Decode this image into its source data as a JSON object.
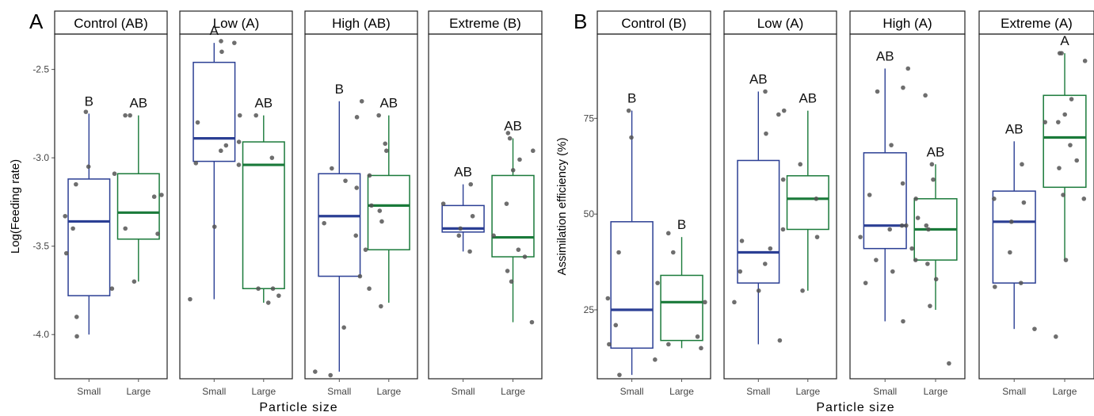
{
  "chart_data": [
    {
      "type": "boxplot",
      "panel_label": "A",
      "ylabel": "Log(Feeding rate)",
      "xlabel": "Particle size",
      "ylim": [
        -4.25,
        -2.3
      ],
      "yticks": [
        -4.0,
        -3.5,
        -3.0,
        -2.5
      ],
      "ytick_labels": [
        "-4.0",
        "-3.5",
        "-3.0",
        "-2.5"
      ],
      "categories": [
        "Small",
        "Large"
      ],
      "colors": {
        "Small": "#2b3f94",
        "Large": "#1a7a3a"
      },
      "facets": [
        {
          "title": "Control (AB)",
          "boxes": [
            {
              "group": "Small",
              "min": -4.0,
              "q1": -3.78,
              "median": -3.36,
              "q3": -3.12,
              "max": -2.75,
              "sig": "B",
              "points": [
                -2.74,
                -3.05,
                -3.15,
                -3.33,
                -3.4,
                -3.54,
                -3.74,
                -3.9,
                -4.01
              ]
            },
            {
              "group": "Large",
              "min": -3.7,
              "q1": -3.46,
              "median": -3.31,
              "q3": -3.09,
              "max": -2.76,
              "sig": "AB",
              "points": [
                -2.76,
                -2.76,
                -3.09,
                -3.21,
                -3.22,
                -3.4,
                -3.43,
                -3.7
              ]
            }
          ]
        },
        {
          "title": "Low (A)",
          "boxes": [
            {
              "group": "Small",
              "min": -3.8,
              "q1": -3.02,
              "median": -2.89,
              "q3": -2.46,
              "max": -2.35,
              "sig": "A",
              "points": [
                -2.34,
                -2.35,
                -2.4,
                -2.8,
                -2.93,
                -2.96,
                -3.03,
                -3.39,
                -3.8
              ]
            },
            {
              "group": "Large",
              "min": -3.82,
              "q1": -3.74,
              "median": -3.04,
              "q3": -2.91,
              "max": -2.76,
              "sig": "AB",
              "points": [
                -2.76,
                -2.76,
                -2.91,
                -3.0,
                -3.04,
                -3.74,
                -3.74,
                -3.78,
                -3.82
              ]
            }
          ]
        },
        {
          "title": "High (AB)",
          "boxes": [
            {
              "group": "Small",
              "min": -4.21,
              "q1": -3.67,
              "median": -3.33,
              "q3": -3.09,
              "max": -2.68,
              "sig": "B",
              "points": [
                -2.68,
                -2.77,
                -3.06,
                -3.13,
                -3.17,
                -3.37,
                -3.44,
                -3.67,
                -3.96,
                -4.21,
                -4.23
              ]
            },
            {
              "group": "Large",
              "min": -3.82,
              "q1": -3.52,
              "median": -3.27,
              "q3": -3.1,
              "max": -2.76,
              "sig": "AB",
              "points": [
                -2.76,
                -2.92,
                -2.96,
                -3.1,
                -3.27,
                -3.3,
                -3.36,
                -3.52,
                -3.74,
                -3.84
              ]
            }
          ]
        },
        {
          "title": "Extreme (B)",
          "boxes": [
            {
              "group": "Small",
              "min": -3.53,
              "q1": -3.42,
              "median": -3.4,
              "q3": -3.27,
              "max": -3.15,
              "sig": "AB",
              "points": [
                -3.15,
                -3.26,
                -3.33,
                -3.4,
                -3.44,
                -3.53
              ]
            },
            {
              "group": "Large",
              "min": -3.93,
              "q1": -3.56,
              "median": -3.45,
              "q3": -3.1,
              "max": -2.89,
              "sig": "AB",
              "points": [
                -2.86,
                -2.89,
                -2.96,
                -3.01,
                -3.07,
                -3.26,
                -3.44,
                -3.52,
                -3.56,
                -3.64,
                -3.7,
                -3.93
              ]
            }
          ]
        }
      ]
    },
    {
      "type": "boxplot",
      "panel_label": "B",
      "ylabel": "Assimilation efficiency (%)",
      "xlabel": "Particle size",
      "ylim": [
        7,
        97
      ],
      "yticks": [
        25,
        50,
        75
      ],
      "ytick_labels": [
        "25",
        "50",
        "75"
      ],
      "categories": [
        "Small",
        "Large"
      ],
      "colors": {
        "Small": "#2b3f94",
        "Large": "#1a7a3a"
      },
      "facets": [
        {
          "title": "Control (B)",
          "boxes": [
            {
              "group": "Small",
              "min": 8,
              "q1": 15,
              "median": 25,
              "q3": 48,
              "max": 77,
              "sig": "B",
              "points": [
                77,
                70,
                40,
                28,
                21,
                16,
                12,
                8
              ]
            },
            {
              "group": "Large",
              "min": 15,
              "q1": 17,
              "median": 27,
              "q3": 34,
              "max": 44,
              "sig": "B",
              "points": [
                45,
                40,
                32,
                27,
                18,
                16,
                15
              ]
            }
          ]
        },
        {
          "title": "Low (A)",
          "boxes": [
            {
              "group": "Small",
              "min": 16,
              "q1": 32,
              "median": 40,
              "q3": 64,
              "max": 82,
              "sig": "AB",
              "points": [
                82,
                76,
                71,
                43,
                41,
                37,
                35,
                30,
                27,
                17
              ]
            },
            {
              "group": "Large",
              "min": 30,
              "q1": 46,
              "median": 54,
              "q3": 60,
              "max": 77,
              "sig": "AB",
              "points": [
                77,
                63,
                59,
                54,
                46,
                44,
                30
              ]
            }
          ]
        },
        {
          "title": "High (A)",
          "boxes": [
            {
              "group": "Small",
              "min": 22,
              "q1": 41,
              "median": 47,
              "q3": 66,
              "max": 88,
              "sig": "AB",
              "points": [
                88,
                83,
                82,
                68,
                58,
                55,
                47,
                47,
                46,
                44,
                38,
                35,
                32,
                22
              ]
            },
            {
              "group": "Large",
              "min": 25,
              "q1": 38,
              "median": 46,
              "q3": 54,
              "max": 63,
              "sig": "AB",
              "points": [
                81,
                63,
                59,
                54,
                49,
                47,
                46,
                41,
                38,
                37,
                33,
                26,
                11
              ]
            }
          ]
        },
        {
          "title": "Extreme (A)",
          "boxes": [
            {
              "group": "Small",
              "min": 20,
              "q1": 32,
              "median": 48,
              "q3": 56,
              "max": 69,
              "sig": "AB",
              "points": [
                63,
                54,
                53,
                48,
                40,
                32,
                31,
                20
              ]
            },
            {
              "group": "Large",
              "min": 38,
              "q1": 57,
              "median": 70,
              "q3": 81,
              "max": 92,
              "sig": "A",
              "points": [
                92,
                92,
                90,
                80,
                76,
                74,
                74,
                68,
                64,
                62,
                55,
                54,
                38,
                18
              ]
            }
          ]
        }
      ]
    }
  ]
}
